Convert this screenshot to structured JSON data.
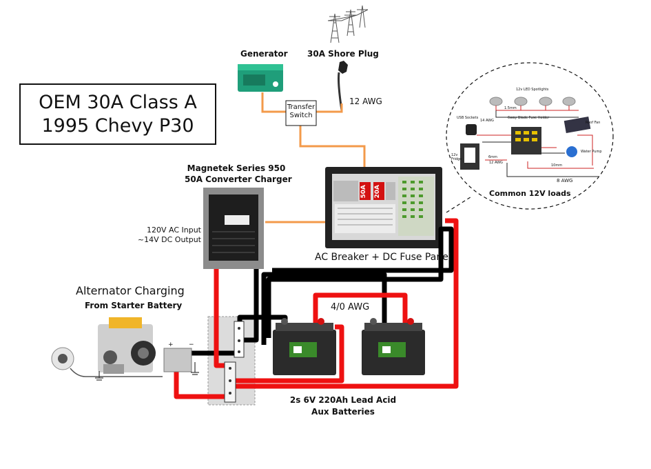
{
  "title": {
    "line1": "OEM 30A Class A",
    "line2": "1995 Chevy P30"
  },
  "labels": {
    "generator": "Generator",
    "shore_plug": "30A Shore Plug",
    "wire_12awg": "12 AWG",
    "transfer_switch_line1": "Transfer",
    "transfer_switch_line2": "Switch",
    "converter_title_line1": "Magnetek Series 950",
    "converter_title_line2": "50A Converter Charger",
    "converter_io_line1": "120V AC Input",
    "converter_io_line2": "~14V DC Output",
    "panel": "AC Breaker + DC Fuse Panel",
    "breaker_50a": "50A",
    "breaker_20a": "20A",
    "alternator_title": "Alternator Charging",
    "alternator_sub": "From Starter Battery",
    "wire_4_0awg": "4/0 AWG",
    "batteries_line1": "2s 6V 220Ah Lead Acid",
    "batteries_line2": "Aux Batteries",
    "loads_caption": "Common 12V loads",
    "loads": {
      "spotlights": "12v LED Spotlights",
      "usb": "USB Sockets",
      "fuse_holder": "6way Blade Fuse Holder",
      "roof_fan": "Roof Fan",
      "water_pump": "Water Pump",
      "fridge": "12v Fridge",
      "awg14": "14 AWG",
      "awg12": "12 AWG",
      "awg8": "8 AWG",
      "mm15": "1.5mm",
      "mm6": "6mm",
      "mm10": "10mm"
    }
  },
  "colors": {
    "ac_wire": "#f39a4a",
    "pos_wire": "#ee1111",
    "neg_wire": "#000000",
    "generator": "#1f9e7a",
    "battery": "#2b2b2b",
    "battery_label": "#3a8a2a"
  }
}
